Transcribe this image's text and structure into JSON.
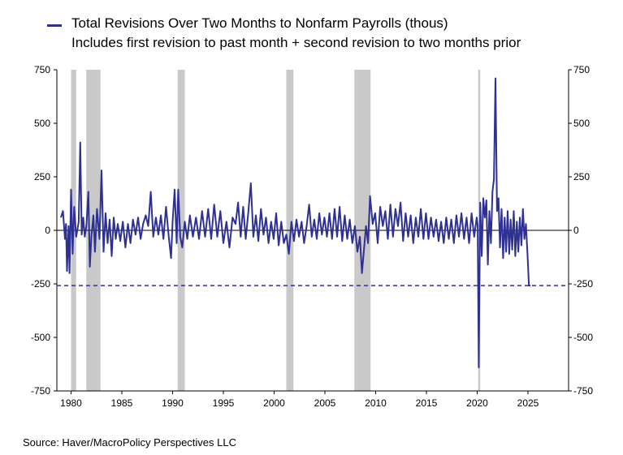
{
  "chart_data": {
    "type": "line",
    "title": "",
    "legend": [
      {
        "name": "Total Revisions Over Two Months to Nonfarm Payrolls (thous)",
        "subtext": "Includes first revision to past month + second revision to two months prior",
        "color": "#2e3192"
      }
    ],
    "source": "Source:  Haver/MacroPolicy Perspectives LLC",
    "xlabel": "",
    "ylabel": "",
    "xlim": [
      1978.6,
      2029.0
    ],
    "ylim": [
      -750,
      750
    ],
    "x_ticks": [
      1980,
      1985,
      1990,
      1995,
      2000,
      2005,
      2010,
      2015,
      2020,
      2025
    ],
    "y_ticks": [
      750,
      500,
      250,
      0,
      -250,
      -500,
      -750
    ],
    "y_ticks_right": [
      750,
      500,
      250,
      0,
      -250,
      -500,
      -750
    ],
    "reference_line": {
      "y": -258,
      "style": "dashed",
      "color": "#2e3192"
    },
    "zero_line": {
      "y": 0,
      "color": "#000000"
    },
    "recessions": [
      [
        1980.0,
        1980.5
      ],
      [
        1981.5,
        1982.9
      ],
      [
        1990.5,
        1991.2
      ],
      [
        2001.2,
        2001.9
      ],
      [
        2007.9,
        2009.5
      ],
      [
        2020.1,
        2020.3
      ]
    ],
    "series": [
      {
        "name": "Total Revisions Over Two Months to Nonfarm Payrolls (thous)",
        "color": "#2e3192",
        "points": [
          [
            1979.0,
            60
          ],
          [
            1979.2,
            90
          ],
          [
            1979.4,
            -40
          ],
          [
            1979.5,
            30
          ],
          [
            1979.6,
            -190
          ],
          [
            1979.75,
            20
          ],
          [
            1979.85,
            -200
          ],
          [
            1980.0,
            190
          ],
          [
            1980.15,
            -110
          ],
          [
            1980.3,
            110
          ],
          [
            1980.5,
            -30
          ],
          [
            1980.75,
            40
          ],
          [
            1980.9,
            410
          ],
          [
            1981.05,
            -20
          ],
          [
            1981.2,
            60
          ],
          [
            1981.35,
            -30
          ],
          [
            1981.5,
            20
          ],
          [
            1981.7,
            180
          ],
          [
            1981.85,
            -170
          ],
          [
            1982.0,
            -30
          ],
          [
            1982.2,
            70
          ],
          [
            1982.35,
            -100
          ],
          [
            1982.55,
            100
          ],
          [
            1982.8,
            -40
          ],
          [
            1983.0,
            280
          ],
          [
            1983.2,
            -100
          ],
          [
            1983.4,
            80
          ],
          [
            1983.6,
            -60
          ],
          [
            1983.8,
            50
          ],
          [
            1984.0,
            -120
          ],
          [
            1984.2,
            60
          ],
          [
            1984.4,
            -40
          ],
          [
            1984.6,
            30
          ],
          [
            1984.85,
            -50
          ],
          [
            1985.1,
            40
          ],
          [
            1985.35,
            -80
          ],
          [
            1985.6,
            30
          ],
          [
            1985.85,
            -60
          ],
          [
            1986.1,
            50
          ],
          [
            1986.35,
            -20
          ],
          [
            1986.6,
            60
          ],
          [
            1986.85,
            -40
          ],
          [
            1987.1,
            30
          ],
          [
            1987.35,
            70
          ],
          [
            1987.6,
            20
          ],
          [
            1987.85,
            180
          ],
          [
            1988.1,
            -30
          ],
          [
            1988.35,
            60
          ],
          [
            1988.6,
            -20
          ],
          [
            1988.85,
            70
          ],
          [
            1989.1,
            -40
          ],
          [
            1989.35,
            110
          ],
          [
            1989.6,
            -20
          ],
          [
            1989.85,
            -130
          ],
          [
            1990.0,
            40
          ],
          [
            1990.2,
            190
          ],
          [
            1990.4,
            -60
          ],
          [
            1990.55,
            190
          ],
          [
            1990.75,
            -30
          ],
          [
            1990.95,
            -80
          ],
          [
            1991.2,
            40
          ],
          [
            1991.45,
            -40
          ],
          [
            1991.7,
            70
          ],
          [
            1992.0,
            -30
          ],
          [
            1992.3,
            60
          ],
          [
            1992.6,
            -40
          ],
          [
            1992.9,
            90
          ],
          [
            1993.2,
            -30
          ],
          [
            1993.5,
            100
          ],
          [
            1993.8,
            -40
          ],
          [
            1994.1,
            120
          ],
          [
            1994.4,
            -30
          ],
          [
            1994.7,
            90
          ],
          [
            1995.0,
            -60
          ],
          [
            1995.3,
            40
          ],
          [
            1995.6,
            -80
          ],
          [
            1995.9,
            60
          ],
          [
            1996.2,
            30
          ],
          [
            1996.45,
            130
          ],
          [
            1996.7,
            -30
          ],
          [
            1996.95,
            110
          ],
          [
            1997.2,
            -40
          ],
          [
            1997.45,
            80
          ],
          [
            1997.7,
            220
          ],
          [
            1997.95,
            -30
          ],
          [
            1998.2,
            70
          ],
          [
            1998.45,
            -50
          ],
          [
            1998.7,
            100
          ],
          [
            1998.95,
            -20
          ],
          [
            1999.2,
            60
          ],
          [
            1999.45,
            -60
          ],
          [
            1999.7,
            40
          ],
          [
            1999.95,
            -40
          ],
          [
            2000.2,
            80
          ],
          [
            2000.45,
            -70
          ],
          [
            2000.7,
            40
          ],
          [
            2000.95,
            -60
          ],
          [
            2001.2,
            -20
          ],
          [
            2001.45,
            -110
          ],
          [
            2001.7,
            40
          ],
          [
            2001.95,
            -50
          ],
          [
            2002.2,
            50
          ],
          [
            2002.45,
            -30
          ],
          [
            2002.7,
            40
          ],
          [
            2002.95,
            -60
          ],
          [
            2003.2,
            20
          ],
          [
            2003.45,
            120
          ],
          [
            2003.7,
            -30
          ],
          [
            2003.95,
            50
          ],
          [
            2004.2,
            -40
          ],
          [
            2004.45,
            80
          ],
          [
            2004.7,
            -20
          ],
          [
            2004.95,
            60
          ],
          [
            2005.2,
            -30
          ],
          [
            2005.45,
            80
          ],
          [
            2005.7,
            -40
          ],
          [
            2005.95,
            100
          ],
          [
            2006.2,
            -30
          ],
          [
            2006.45,
            110
          ],
          [
            2006.7,
            -50
          ],
          [
            2006.95,
            70
          ],
          [
            2007.2,
            -40
          ],
          [
            2007.45,
            50
          ],
          [
            2007.7,
            -60
          ],
          [
            2007.95,
            20
          ],
          [
            2008.2,
            -100
          ],
          [
            2008.45,
            -30
          ],
          [
            2008.65,
            -200
          ],
          [
            2008.85,
            -90
          ],
          [
            2009.05,
            20
          ],
          [
            2009.25,
            -60
          ],
          [
            2009.45,
            160
          ],
          [
            2009.7,
            30
          ],
          [
            2009.95,
            80
          ],
          [
            2010.2,
            -60
          ],
          [
            2010.45,
            110
          ],
          [
            2010.7,
            20
          ],
          [
            2010.95,
            90
          ],
          [
            2011.2,
            -40
          ],
          [
            2011.45,
            120
          ],
          [
            2011.7,
            -30
          ],
          [
            2011.95,
            100
          ],
          [
            2012.2,
            20
          ],
          [
            2012.45,
            130
          ],
          [
            2012.7,
            -50
          ],
          [
            2012.95,
            80
          ],
          [
            2013.2,
            -30
          ],
          [
            2013.45,
            70
          ],
          [
            2013.7,
            -60
          ],
          [
            2013.95,
            60
          ],
          [
            2014.2,
            -30
          ],
          [
            2014.45,
            100
          ],
          [
            2014.7,
            -40
          ],
          [
            2014.95,
            80
          ],
          [
            2015.2,
            -40
          ],
          [
            2015.45,
            60
          ],
          [
            2015.7,
            -30
          ],
          [
            2015.95,
            50
          ],
          [
            2016.2,
            -50
          ],
          [
            2016.45,
            40
          ],
          [
            2016.7,
            -60
          ],
          [
            2016.95,
            60
          ],
          [
            2017.2,
            -40
          ],
          [
            2017.45,
            50
          ],
          [
            2017.7,
            -60
          ],
          [
            2017.95,
            70
          ],
          [
            2018.2,
            -30
          ],
          [
            2018.45,
            80
          ],
          [
            2018.7,
            -40
          ],
          [
            2018.95,
            60
          ],
          [
            2019.2,
            -60
          ],
          [
            2019.45,
            80
          ],
          [
            2019.7,
            -30
          ],
          [
            2019.95,
            60
          ],
          [
            2020.05,
            20
          ],
          [
            2020.15,
            -640
          ],
          [
            2020.3,
            130
          ],
          [
            2020.45,
            -120
          ],
          [
            2020.6,
            150
          ],
          [
            2020.75,
            60
          ],
          [
            2020.9,
            140
          ],
          [
            2021.05,
            -160
          ],
          [
            2021.2,
            90
          ],
          [
            2021.35,
            -60
          ],
          [
            2021.5,
            180
          ],
          [
            2021.65,
            240
          ],
          [
            2021.8,
            710
          ],
          [
            2021.95,
            90
          ],
          [
            2022.1,
            150
          ],
          [
            2022.25,
            -80
          ],
          [
            2022.4,
            100
          ],
          [
            2022.55,
            -130
          ],
          [
            2022.7,
            60
          ],
          [
            2022.85,
            -100
          ],
          [
            2023.0,
            90
          ],
          [
            2023.15,
            -110
          ],
          [
            2023.3,
            50
          ],
          [
            2023.45,
            -90
          ],
          [
            2023.6,
            90
          ],
          [
            2023.75,
            -120
          ],
          [
            2023.9,
            40
          ],
          [
            2024.05,
            -100
          ],
          [
            2024.2,
            60
          ],
          [
            2024.35,
            -70
          ],
          [
            2024.5,
            100
          ],
          [
            2024.65,
            -40
          ],
          [
            2024.8,
            30
          ],
          [
            2024.95,
            -110
          ],
          [
            2025.1,
            -258
          ],
          [
            2025.25,
            -258
          ]
        ]
      }
    ]
  }
}
